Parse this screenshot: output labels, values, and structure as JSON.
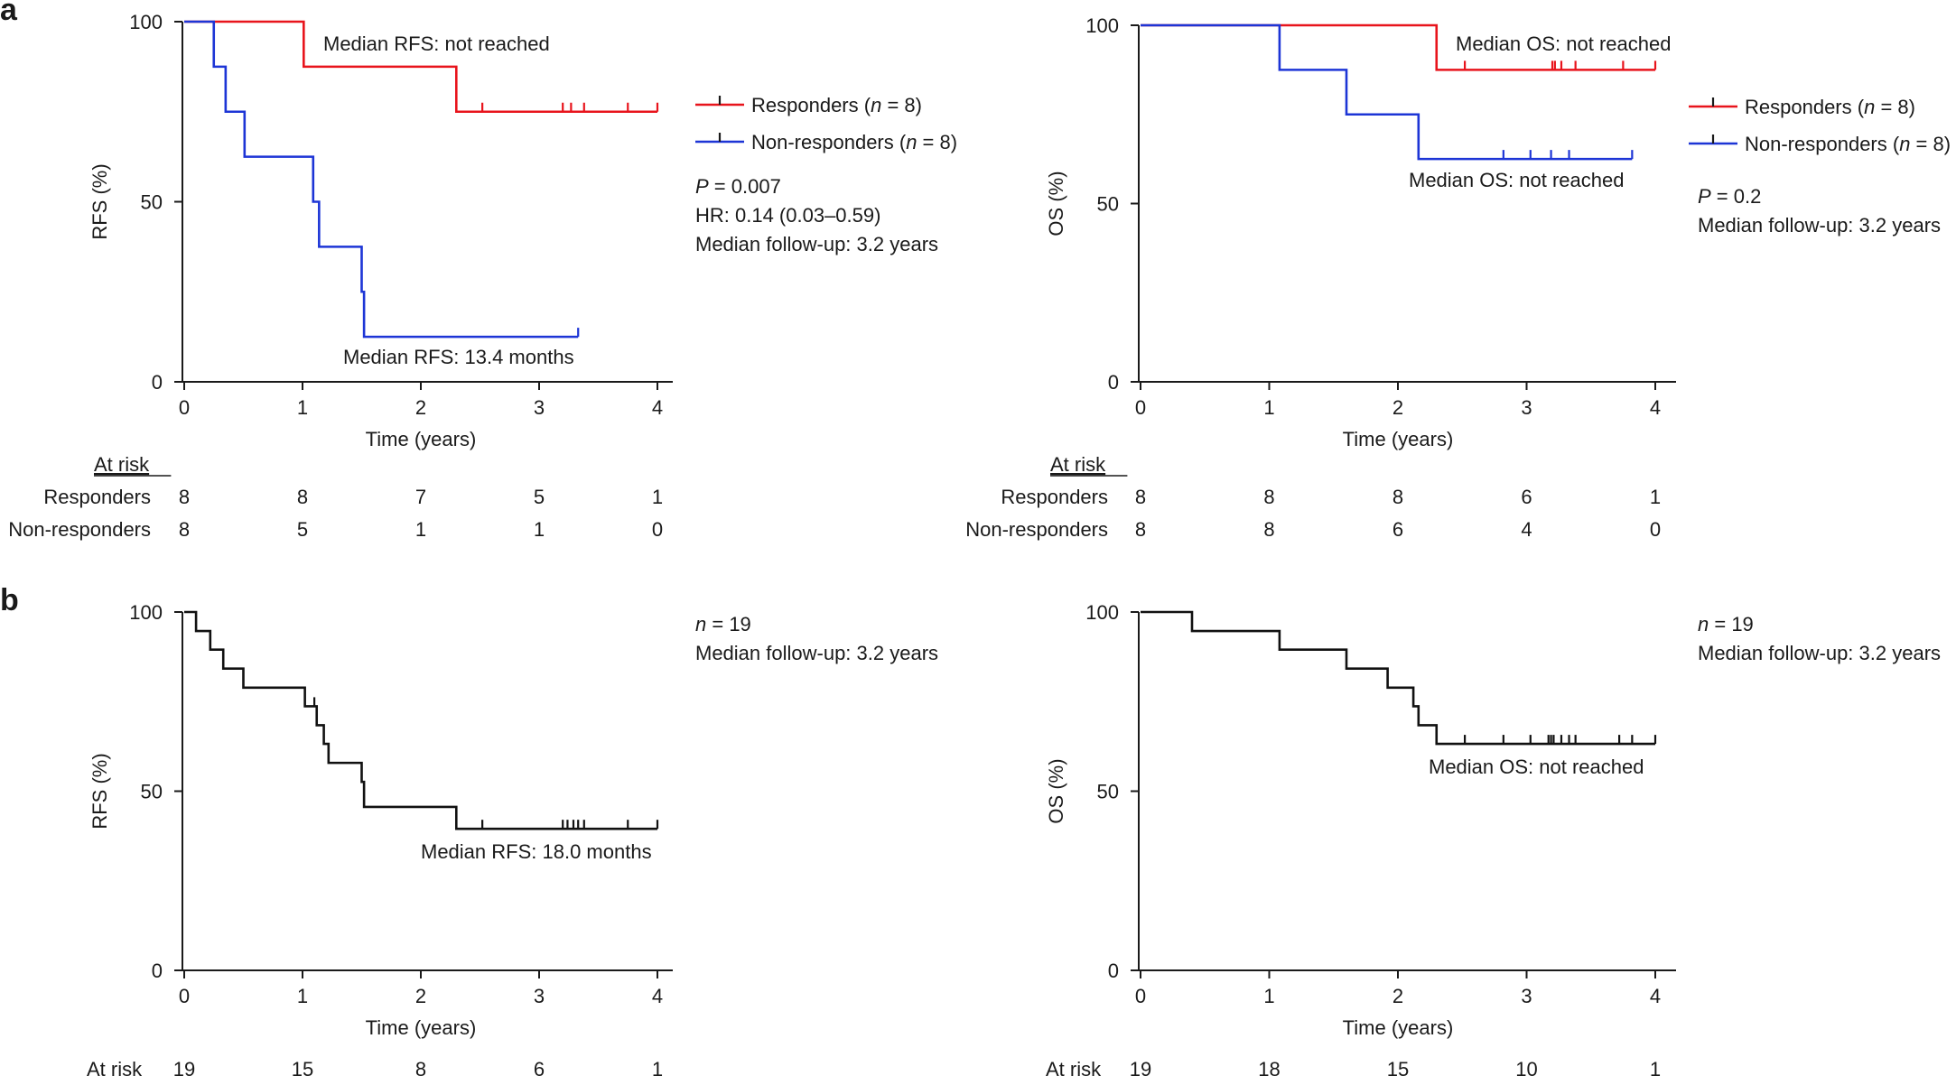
{
  "panels": {
    "a": "a",
    "b": "b"
  },
  "chart_data": [
    {
      "id": "a-rfs",
      "type": "line",
      "subtype": "kaplan-meier",
      "xlabel": "Time (years)",
      "ylabel": "RFS (%)",
      "xlim": [
        0,
        4
      ],
      "ylim": [
        0,
        100
      ],
      "xticks": [
        "0",
        "1",
        "2",
        "3",
        "4"
      ],
      "yticks": [
        "0",
        "50",
        "100"
      ],
      "legend_position": "right",
      "series": [
        {
          "name_parts": [
            "Responders (",
            "n",
            " = 8)"
          ],
          "color": "#e8141c",
          "steps": [
            [
              0,
              100
            ],
            [
              1.01,
              87.5
            ],
            [
              2.3,
              75
            ]
          ],
          "end_x": 4.0,
          "censors": [
            2.52,
            3.2,
            3.27,
            3.38,
            3.75,
            4.0
          ]
        },
        {
          "name_parts": [
            "Non-responders (",
            "n",
            " = 8)"
          ],
          "color": "#1d35d6",
          "steps": [
            [
              0,
              100
            ],
            [
              0.25,
              87.5
            ],
            [
              0.35,
              75
            ],
            [
              0.51,
              62.5
            ],
            [
              1.09,
              50
            ],
            [
              1.14,
              37.5
            ],
            [
              1.5,
              25
            ],
            [
              1.52,
              12.5
            ]
          ],
          "end_x": 3.33,
          "censors": [
            3.33
          ]
        }
      ],
      "annotations": [
        "Median RFS: not reached",
        "Median RFS: 13.4 months"
      ],
      "stats": [
        {
          "parts": [
            "P",
            " = 0.007"
          ],
          "italic_first": true
        },
        {
          "parts": [
            "HR: 0.14 (0.03–0.59)"
          ],
          "italic_first": false
        },
        {
          "parts": [
            "Median follow-up: 3.2 years"
          ],
          "italic_first": false
        }
      ],
      "at_risk": {
        "header": "At risk",
        "rows": [
          {
            "label": "Responders",
            "values": [
              "8",
              "8",
              "7",
              "5",
              "1"
            ]
          },
          {
            "label": "Non-responders",
            "values": [
              "8",
              "5",
              "1",
              "1",
              "0"
            ]
          }
        ]
      }
    },
    {
      "id": "a-os",
      "type": "line",
      "subtype": "kaplan-meier",
      "xlabel": "Time (years)",
      "ylabel": "OS (%)",
      "xlim": [
        0,
        4
      ],
      "ylim": [
        0,
        100
      ],
      "xticks": [
        "0",
        "1",
        "2",
        "3",
        "4"
      ],
      "yticks": [
        "0",
        "50",
        "100"
      ],
      "legend_position": "right",
      "series": [
        {
          "name_parts": [
            "Responders (",
            "n",
            " = 8)"
          ],
          "color": "#e8141c",
          "steps": [
            [
              0,
              100
            ],
            [
              2.3,
              87.5
            ]
          ],
          "end_x": 4.0,
          "censors": [
            2.52,
            3.2,
            3.22,
            3.27,
            3.38,
            3.75,
            4.0
          ]
        },
        {
          "name_parts": [
            "Non-responders (",
            "n",
            " = 8)"
          ],
          "color": "#1d35d6",
          "steps": [
            [
              0,
              100
            ],
            [
              1.08,
              87.5
            ],
            [
              1.6,
              75
            ],
            [
              2.16,
              62.5
            ]
          ],
          "end_x": 3.82,
          "censors": [
            2.82,
            3.03,
            3.19,
            3.33,
            3.82
          ]
        }
      ],
      "annotations": [
        "Median OS: not reached",
        "Median OS: not reached"
      ],
      "stats": [
        {
          "parts": [
            "P",
            " = 0.2"
          ],
          "italic_first": true
        },
        {
          "parts": [
            "Median follow-up: 3.2 years"
          ],
          "italic_first": false
        }
      ],
      "at_risk": {
        "header": "At risk",
        "rows": [
          {
            "label": "Responders",
            "values": [
              "8",
              "8",
              "8",
              "6",
              "1"
            ]
          },
          {
            "label": "Non-responders",
            "values": [
              "8",
              "8",
              "6",
              "4",
              "0"
            ]
          }
        ]
      }
    },
    {
      "id": "b-rfs",
      "type": "line",
      "subtype": "kaplan-meier",
      "xlabel": "Time (years)",
      "ylabel": "RFS (%)",
      "xlim": [
        0,
        4
      ],
      "ylim": [
        0,
        100
      ],
      "xticks": [
        "0",
        "1",
        "2",
        "3",
        "4"
      ],
      "yticks": [
        "0",
        "50",
        "100"
      ],
      "series": [
        {
          "color": "#111111",
          "steps": [
            [
              0,
              100
            ],
            [
              0.1,
              94.7
            ],
            [
              0.22,
              89.5
            ],
            [
              0.33,
              84.2
            ],
            [
              0.5,
              78.9
            ],
            [
              1.02,
              73.7
            ],
            [
              1.12,
              68.4
            ],
            [
              1.18,
              63.2
            ],
            [
              1.22,
              57.9
            ],
            [
              1.5,
              52.6
            ],
            [
              1.52,
              45.6
            ],
            [
              2.3,
              39.5
            ]
          ],
          "end_x": 4.0,
          "censors": [
            1.1,
            2.52,
            3.2,
            3.24,
            3.29,
            3.33,
            3.38,
            3.75,
            4.0
          ]
        }
      ],
      "annotations": [
        "Median RFS: 18.0 months"
      ],
      "stats": [
        {
          "parts": [
            "n",
            " = 19"
          ],
          "italic_first": true
        },
        {
          "parts": [
            "Median follow-up: 3.2 years"
          ],
          "italic_first": false
        }
      ],
      "at_risk": {
        "header": "At risk",
        "rows": [
          {
            "label": "",
            "values": [
              "19",
              "15",
              "8",
              "6",
              "1"
            ]
          }
        ]
      }
    },
    {
      "id": "b-os",
      "type": "line",
      "subtype": "kaplan-meier",
      "xlabel": "Time (years)",
      "ylabel": "OS (%)",
      "xlim": [
        0,
        4
      ],
      "ylim": [
        0,
        100
      ],
      "xticks": [
        "0",
        "1",
        "2",
        "3",
        "4"
      ],
      "yticks": [
        "0",
        "50",
        "100"
      ],
      "series": [
        {
          "color": "#111111",
          "steps": [
            [
              0,
              100
            ],
            [
              0.4,
              94.7
            ],
            [
              1.08,
              89.5
            ],
            [
              1.6,
              84.2
            ],
            [
              1.92,
              78.9
            ],
            [
              2.12,
              73.7
            ],
            [
              2.16,
              68.4
            ],
            [
              2.3,
              63.2
            ]
          ],
          "end_x": 4.0,
          "censors": [
            2.52,
            2.82,
            3.03,
            3.17,
            3.19,
            3.21,
            3.27,
            3.33,
            3.38,
            3.72,
            3.82,
            4.0
          ]
        }
      ],
      "annotations": [
        "Median OS: not reached"
      ],
      "stats": [
        {
          "parts": [
            "n",
            " = 19"
          ],
          "italic_first": true
        },
        {
          "parts": [
            "Median follow-up: 3.2 years"
          ],
          "italic_first": false
        }
      ],
      "at_risk": {
        "header": "At risk",
        "rows": [
          {
            "label": "",
            "values": [
              "19",
              "18",
              "15",
              "10",
              "1"
            ]
          }
        ]
      }
    }
  ]
}
